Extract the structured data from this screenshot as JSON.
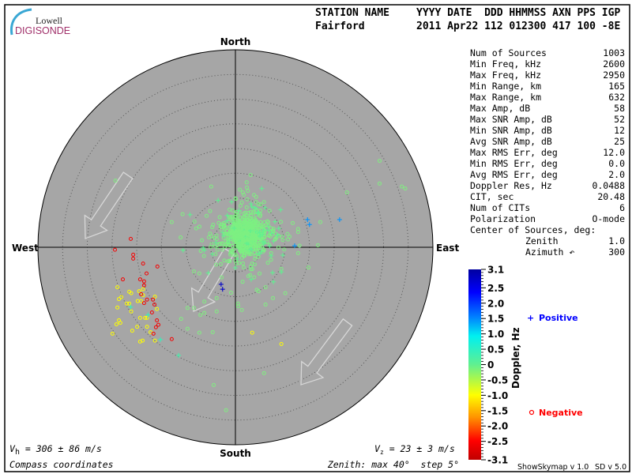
{
  "logo": {
    "line1": "Lowell",
    "line2": "DIGISONDE",
    "arc_color": "#3aa7d4",
    "text2_color": "#a0306a"
  },
  "header": {
    "row1": [
      "STATION NAME",
      "YYYY DATE  DDD HHMMSS AXN PPS IGP"
    ],
    "row2": [
      "Fairford",
      "2011 Apr22 112 012300 417 100 -8E"
    ]
  },
  "directions": {
    "north": "North",
    "south": "South",
    "west": "West",
    "east": "East"
  },
  "stats": [
    {
      "label": "Num of Sources",
      "value": "1003"
    },
    {
      "label": "Min Freq, kHz",
      "value": "2600"
    },
    {
      "label": "Max Freq, kHz",
      "value": "2950"
    },
    {
      "label": "Min Range, km",
      "value": "165"
    },
    {
      "label": "Max Range, km",
      "value": "632"
    },
    {
      "label": "Max Amp, dB",
      "value": "58"
    },
    {
      "label": "Max SNR Amp, dB",
      "value": "52"
    },
    {
      "label": "Min SNR Amp, dB",
      "value": "12"
    },
    {
      "label": "Avg SNR Amp, dB",
      "value": "25"
    },
    {
      "label": "Max RMS Err, deg",
      "value": "12.0"
    },
    {
      "label": "Min RMS Err, deg",
      "value": "0.0"
    },
    {
      "label": "Avg RMS Err, deg",
      "value": "2.0"
    },
    {
      "label": "Doppler Res, Hz",
      "value": "0.0488"
    },
    {
      "label": "CIT, sec",
      "value": "20.48"
    },
    {
      "label": "Num of CITs",
      "value": "6"
    },
    {
      "label": "Polarization",
      "value": "O-mode"
    },
    {
      "label": "Center of Sources, deg:",
      "value": ""
    },
    {
      "label": "Zenith",
      "value": "1.0",
      "indent": true
    },
    {
      "label": "Azimuth ↶",
      "value": "300",
      "indent": true
    }
  ],
  "footer": {
    "vh_sym": "V",
    "vh_sub": "h",
    "vh_text": " = 306 ± 86 m/s",
    "vz_sym": "V",
    "vz_sub": "z",
    "vz_text": " = 23 ± 3 m/s",
    "coords": "Compass coordinates",
    "zenith": "Zenith: max 40°  step 5°",
    "version1": "ShowSkymap v 1.0",
    "version2": "SD v 5.0"
  },
  "legend": {
    "positive_symbol": "+",
    "positive_label": "Positive",
    "positive_color": "#0000ff",
    "negative_symbol": "o",
    "negative_label": "Negative",
    "negative_color": "#ff0000"
  },
  "chart_data": {
    "type": "scatter",
    "projection": "polar skymap, compass coordinates",
    "zenith_max_deg": 40,
    "zenith_step_deg": 5,
    "plot_background": "#a6a6a6",
    "velocity_direction": "south-west",
    "colorbar": {
      "label": "Doppler, Hz",
      "range": [
        -3.1,
        3.1
      ],
      "tick_labels": [
        "3.1",
        "2.5",
        "2.0",
        "1.5",
        "1.0",
        "0.5",
        "0",
        "-0.5",
        "-1.0",
        "-1.5",
        "-2.0",
        "-2.5",
        "-3.1"
      ],
      "tick_values": [
        3.1,
        2.5,
        2.0,
        1.5,
        1.0,
        0.5,
        0,
        -0.5,
        -1.0,
        -1.5,
        -2.0,
        -2.5,
        -3.1
      ]
    },
    "point_fields": [
      "east_deg",
      "north_deg",
      "doppler_hz",
      "sign"
    ],
    "cluster": {
      "center_east_deg": 2.0,
      "center_north_deg": 2.5,
      "spread_deg": 3.2,
      "count": 820,
      "doppler_hz": -0.25
    },
    "points": [
      [
        -24.3,
        13.5,
        -0.3,
        "o"
      ],
      [
        -4.9,
        12.3,
        -0.3,
        "o"
      ],
      [
        -12.9,
        5.1,
        -0.3,
        "o"
      ],
      [
        -10.7,
        6.7,
        -0.3,
        "o"
      ],
      [
        -11.1,
        2.0,
        -0.3,
        "o"
      ],
      [
        29.2,
        17.5,
        -0.3,
        "o"
      ],
      [
        29.2,
        12.9,
        -0.3,
        "o"
      ],
      [
        33.7,
        12.3,
        -0.3,
        "o"
      ],
      [
        34.4,
        11.9,
        -0.3,
        "o"
      ],
      [
        22.6,
        11.1,
        -0.3,
        "o"
      ],
      [
        17.2,
        5.1,
        -0.3,
        "o"
      ],
      [
        16.7,
        0.4,
        -0.3,
        "o"
      ],
      [
        12.7,
        -1.2,
        -0.3,
        "o"
      ],
      [
        14.8,
        -4.1,
        -0.3,
        "o"
      ],
      [
        10.1,
        -9.3,
        -0.3,
        "o"
      ],
      [
        7.6,
        -10.3,
        -0.3,
        "o"
      ],
      [
        6.1,
        -11.6,
        -0.3,
        "o"
      ],
      [
        5.8,
        -25.5,
        -0.3,
        "o"
      ],
      [
        1.3,
        -12.7,
        -0.3,
        "o"
      ],
      [
        0.5,
        -11.4,
        -0.3,
        "o"
      ],
      [
        -0.9,
        -9.2,
        -0.3,
        "o"
      ],
      [
        -3.8,
        -13.0,
        -0.3,
        "o"
      ],
      [
        -4.4,
        -27.9,
        -0.3,
        "o"
      ],
      [
        -1.9,
        -33.0,
        -0.3,
        "o"
      ],
      [
        -4.6,
        -17.2,
        -0.3,
        "o"
      ],
      [
        -7.3,
        -17.3,
        -0.3,
        "o"
      ],
      [
        -9.7,
        -16.5,
        -0.3,
        "o"
      ],
      [
        -11.0,
        -14.5,
        -0.3,
        "o"
      ],
      [
        -7.1,
        -13.7,
        -0.3,
        "o"
      ],
      [
        -6.3,
        -13.3,
        -0.3,
        "o"
      ],
      [
        -9.7,
        -12.3,
        -0.3,
        "o"
      ],
      [
        -8.4,
        -12.3,
        -0.3,
        "o"
      ],
      [
        -6.3,
        -11.0,
        -0.3,
        "o"
      ],
      [
        -3.8,
        -10.3,
        -0.3,
        "o"
      ],
      [
        -8.4,
        -4.9,
        -0.3,
        "o"
      ],
      [
        -7.3,
        -5.3,
        -0.3,
        "o"
      ],
      [
        -2.8,
        -6.1,
        -0.3,
        "o"
      ],
      [
        4.7,
        -8.9,
        -0.3,
        "o"
      ],
      [
        6.1,
        -8.1,
        -0.3,
        "o"
      ],
      [
        11.6,
        4.9,
        -0.3,
        "o"
      ],
      [
        12.7,
        3.7,
        -0.3,
        "o"
      ],
      [
        12.7,
        3.1,
        -0.3,
        "o"
      ],
      [
        1.5,
        11.1,
        -0.3,
        "o"
      ],
      [
        4.2,
        10.2,
        -0.3,
        "o"
      ],
      [
        3.4,
        -17.3,
        -1.0,
        "o"
      ],
      [
        9.3,
        -19.6,
        -1.0,
        "o"
      ],
      [
        -23.9,
        -8.1,
        -1.0,
        "o"
      ],
      [
        -23.6,
        -10.5,
        -1.0,
        "o"
      ],
      [
        -23.1,
        -10.1,
        -1.0,
        "o"
      ],
      [
        -23.9,
        -12.2,
        -1.0,
        "o"
      ],
      [
        -21.5,
        -9.0,
        -1.0,
        "o"
      ],
      [
        -21.1,
        -9.3,
        -1.0,
        "o"
      ],
      [
        -22.0,
        -11.4,
        -1.0,
        "o"
      ],
      [
        -21.5,
        -11.4,
        -1.0,
        "o"
      ],
      [
        -21.1,
        -13.0,
        -1.0,
        "o"
      ],
      [
        -19.5,
        -8.9,
        -1.0,
        "o"
      ],
      [
        -18.7,
        -8.5,
        -1.0,
        "o"
      ],
      [
        -18.7,
        -9.7,
        -1.0,
        "o"
      ],
      [
        -19.8,
        -10.9,
        -1.0,
        "o"
      ],
      [
        -19.1,
        -10.9,
        -1.0,
        "o"
      ],
      [
        -16.3,
        -10.0,
        -1.0,
        "o"
      ],
      [
        -15.9,
        -12.5,
        -1.0,
        "o"
      ],
      [
        -19.3,
        -14.3,
        -1.0,
        "o"
      ],
      [
        -18.3,
        -14.3,
        -1.0,
        "o"
      ],
      [
        -17.9,
        -14.3,
        -1.0,
        "o"
      ],
      [
        -23.6,
        -14.8,
        -1.0,
        "o"
      ],
      [
        -24.1,
        -15.6,
        -1.0,
        "o"
      ],
      [
        -23.3,
        -15.3,
        -1.0,
        "o"
      ],
      [
        -24.9,
        -17.5,
        -1.0,
        "o"
      ],
      [
        -20.9,
        -16.9,
        -1.0,
        "o"
      ],
      [
        -19.9,
        -16.1,
        -1.0,
        "o"
      ],
      [
        -17.9,
        -16.1,
        -1.0,
        "o"
      ],
      [
        -17.2,
        -17.2,
        -1.0,
        "o"
      ],
      [
        -19.3,
        -19.1,
        -1.0,
        "o"
      ],
      [
        -18.8,
        -18.9,
        -1.0,
        "o"
      ],
      [
        -16.3,
        -18.9,
        -1.0,
        "o"
      ],
      [
        -21.2,
        1.7,
        -2.5,
        "o"
      ],
      [
        -24.4,
        -0.5,
        -2.5,
        "o"
      ],
      [
        -20.7,
        -1.5,
        -2.5,
        "o"
      ],
      [
        -20.7,
        -2.3,
        -2.5,
        "o"
      ],
      [
        -18.7,
        -3.3,
        -2.5,
        "o"
      ],
      [
        -15.8,
        -3.9,
        -2.5,
        "o"
      ],
      [
        -18.0,
        -5.3,
        -2.5,
        "o"
      ],
      [
        -22.8,
        -6.5,
        -2.5,
        "o"
      ],
      [
        -19.3,
        -6.5,
        -2.5,
        "o"
      ],
      [
        -18.5,
        -6.9,
        -2.5,
        "o"
      ],
      [
        -18.5,
        -7.7,
        -2.5,
        "o"
      ],
      [
        -19.1,
        -9.5,
        -2.5,
        "o"
      ],
      [
        -17.9,
        -10.6,
        -2.5,
        "o"
      ],
      [
        -16.7,
        -10.6,
        -2.5,
        "o"
      ],
      [
        -18.5,
        -11.3,
        -2.5,
        "o"
      ],
      [
        -16.4,
        -11.6,
        -2.5,
        "o"
      ],
      [
        -16.9,
        -13.2,
        -2.5,
        "o"
      ],
      [
        -15.9,
        -14.8,
        -2.5,
        "o"
      ],
      [
        -15.6,
        -15.7,
        -2.5,
        "o"
      ],
      [
        -16.1,
        -16.2,
        -2.5,
        "o"
      ],
      [
        -16.6,
        -17.5,
        -2.5,
        "o"
      ],
      [
        -12.9,
        -18.6,
        -2.5,
        "o"
      ],
      [
        -9.2,
        6.6,
        0.2,
        "+"
      ],
      [
        -10.6,
        -0.6,
        0.2,
        "+"
      ],
      [
        -6.3,
        -0.6,
        0.2,
        "+"
      ],
      [
        -5.5,
        -5.2,
        0.2,
        "+"
      ],
      [
        -21.2,
        -12.1,
        0.5,
        "+"
      ],
      [
        -17.7,
        -13.7,
        0.5,
        "+"
      ],
      [
        -15.2,
        -18.7,
        0.5,
        "+"
      ],
      [
        -11.5,
        -21.9,
        0.4,
        "+"
      ],
      [
        9.6,
        -1.6,
        0.2,
        "+"
      ],
      [
        9.3,
        -5.0,
        0.2,
        "+"
      ],
      [
        7.7,
        -7.0,
        0.2,
        "+"
      ],
      [
        3.2,
        -6.5,
        0.2,
        "+"
      ],
      [
        4.5,
        7.0,
        0.2,
        "+"
      ],
      [
        -3.5,
        9.5,
        0.2,
        "+"
      ],
      [
        6.0,
        8.0,
        0.2,
        "+"
      ],
      [
        14.6,
        5.6,
        1.4,
        "+"
      ],
      [
        15.0,
        4.6,
        1.4,
        "+"
      ],
      [
        21.1,
        5.6,
        1.4,
        "+"
      ],
      [
        12.0,
        0.3,
        1.4,
        "+"
      ],
      [
        -2.9,
        -7.5,
        2.8,
        "+"
      ],
      [
        -2.6,
        -8.5,
        2.8,
        "+"
      ]
    ]
  }
}
